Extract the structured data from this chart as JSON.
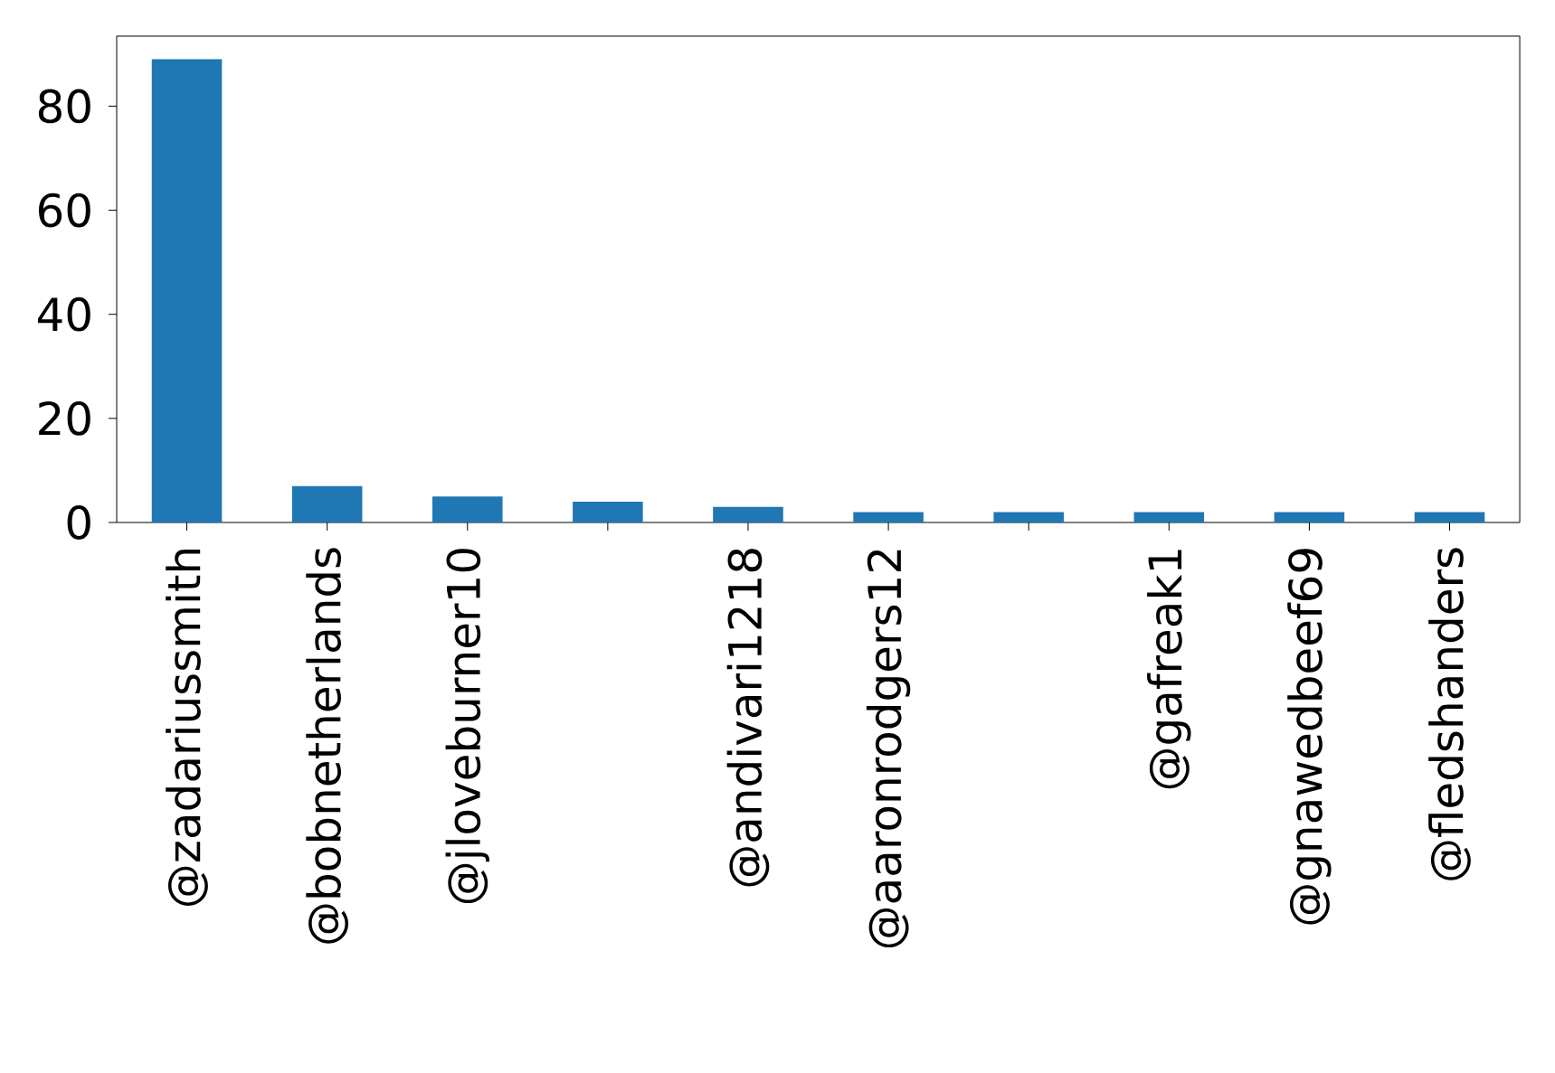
{
  "chart_data": {
    "type": "bar",
    "categories": [
      "@zadariussmith",
      "@bobnetherlands",
      "@jloveburner10",
      null,
      "@andivari1218",
      "@aaronrodgers12",
      null,
      "@gafreak1",
      "@gnawedbeef69",
      "@fledshanders"
    ],
    "values": [
      89,
      7,
      5,
      4,
      3,
      2,
      2,
      2,
      2,
      2
    ],
    "color": "#1f77b4",
    "ylim": [
      0,
      93.45
    ],
    "yticks": [
      0,
      20,
      40,
      60,
      80
    ]
  }
}
